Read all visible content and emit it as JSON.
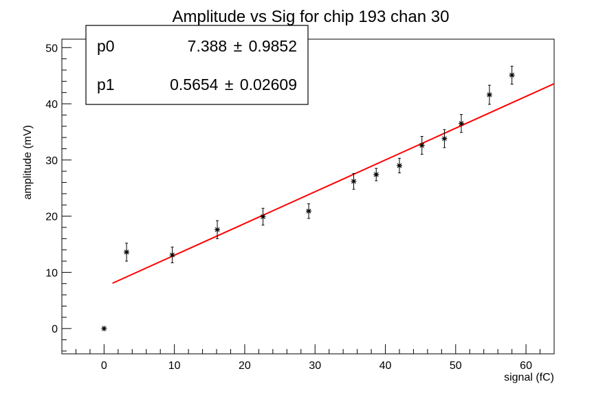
{
  "chart_data": {
    "type": "scatter",
    "title": "Amplitude vs Sig for chip 193 chan 30",
    "xlabel": "signal (fC)",
    "ylabel": "amplitude (mV)",
    "xlim": [
      -6,
      64
    ],
    "ylim": [
      -4.5,
      51.5
    ],
    "x_ticks": [
      0,
      10,
      20,
      30,
      40,
      50,
      60
    ],
    "y_ticks": [
      0,
      10,
      20,
      30,
      40,
      50
    ],
    "grid": false,
    "points": [
      {
        "x": 0.0,
        "y": 0.0,
        "err": 0.0
      },
      {
        "x": 3.2,
        "y": 13.6,
        "err": 1.6
      },
      {
        "x": 9.7,
        "y": 13.1,
        "err": 1.4
      },
      {
        "x": 16.1,
        "y": 17.6,
        "err": 1.6
      },
      {
        "x": 22.6,
        "y": 19.9,
        "err": 1.5
      },
      {
        "x": 29.1,
        "y": 20.9,
        "err": 1.3
      },
      {
        "x": 35.5,
        "y": 26.2,
        "err": 1.4
      },
      {
        "x": 38.7,
        "y": 27.4,
        "err": 1.1
      },
      {
        "x": 42.0,
        "y": 29.0,
        "err": 1.3
      },
      {
        "x": 45.2,
        "y": 32.6,
        "err": 1.6
      },
      {
        "x": 48.4,
        "y": 33.8,
        "err": 1.6
      },
      {
        "x": 50.8,
        "y": 36.5,
        "err": 1.6
      },
      {
        "x": 54.8,
        "y": 41.6,
        "err": 1.7
      },
      {
        "x": 58.0,
        "y": 45.1,
        "err": 1.6
      }
    ],
    "fit": {
      "intercept": 7.388,
      "slope": 0.5654,
      "x_start": 1.2,
      "x_end": 64,
      "color": "#ff0000"
    },
    "stats_box": {
      "position": "top-left",
      "rows": [
        {
          "name": "p0",
          "value": "7.388",
          "pm": "±",
          "error": "0.9852"
        },
        {
          "name": "p1",
          "value": "0.5654",
          "pm": "±",
          "error": "0.02609"
        }
      ]
    }
  }
}
